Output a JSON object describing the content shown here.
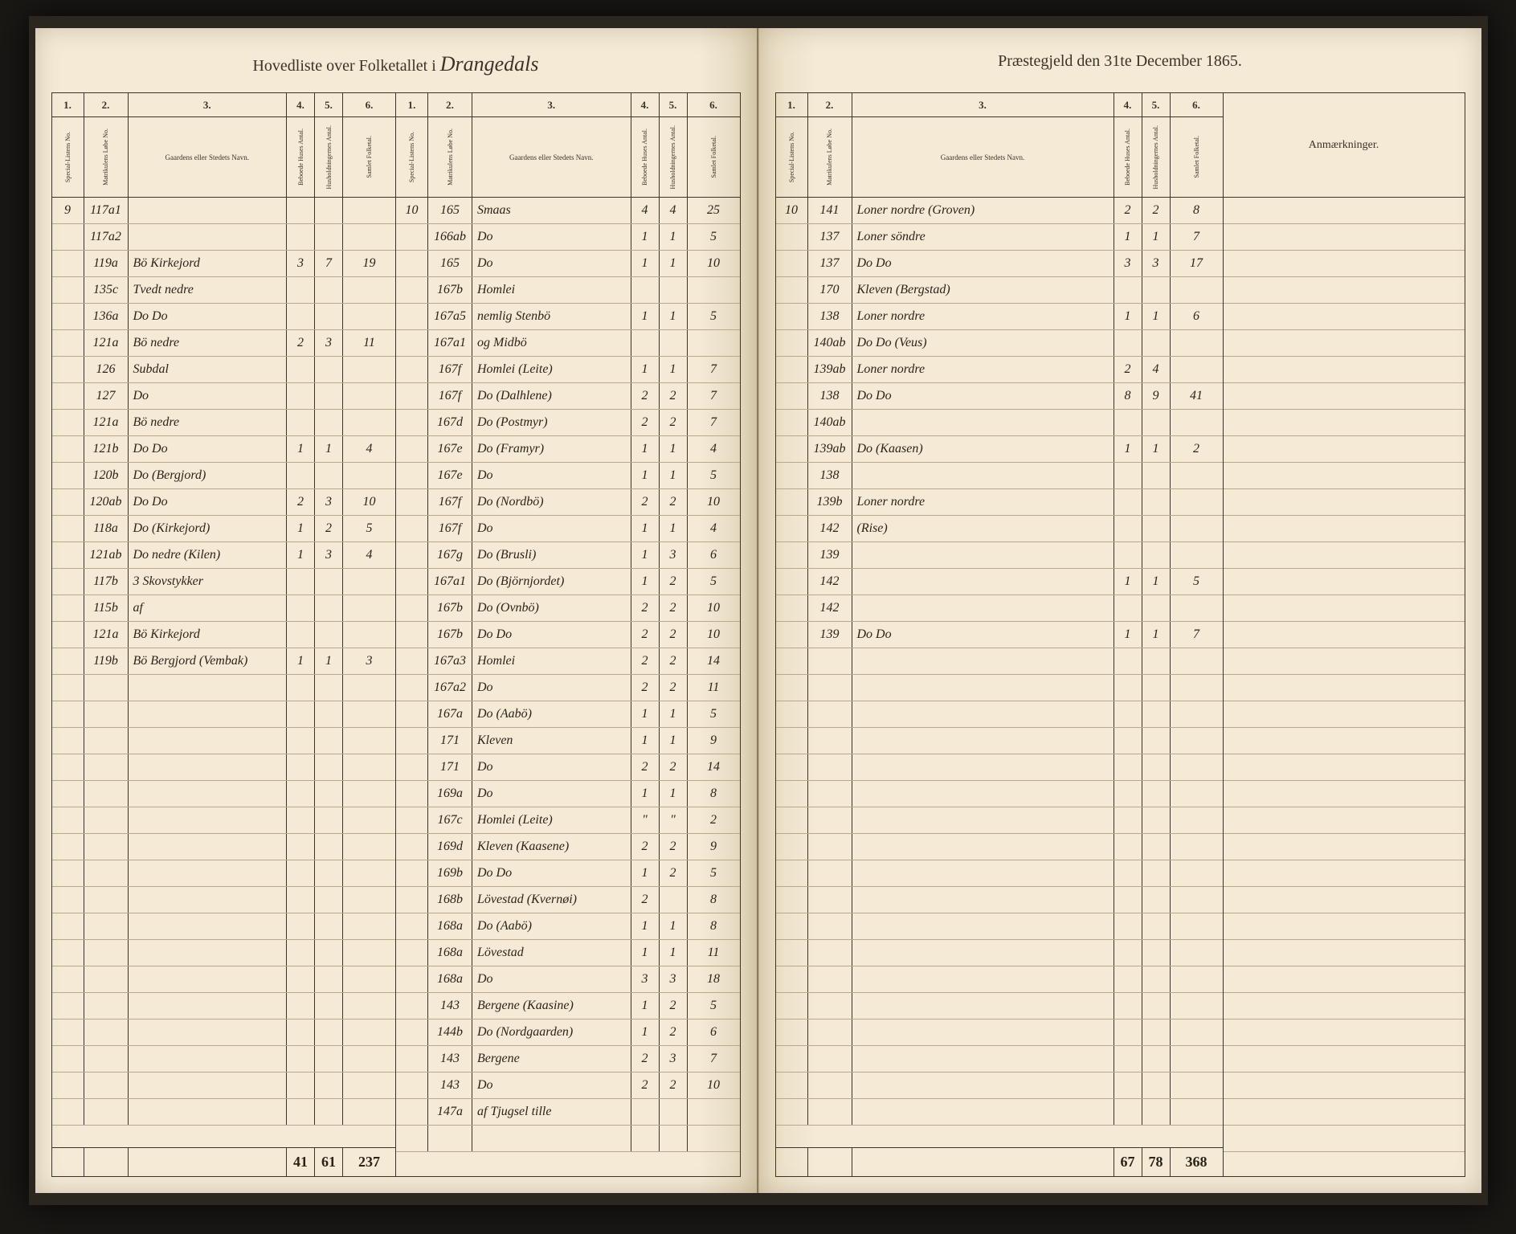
{
  "title_left_print": "Hovedliste over Folketallet i",
  "title_left_script": "Drangedals",
  "title_right": "Præstegjeld den 31te December 1865.",
  "col_nums": [
    "1.",
    "2.",
    "3.",
    "4.",
    "5.",
    "6."
  ],
  "headers": {
    "c1": "Special-Listens No.",
    "c2": "Matrikulens Løbe No.",
    "c3": "Gaardens eller Stedets Navn.",
    "c4": "Beboede Huses Antal.",
    "c5": "Husholdningernes Antal.",
    "c6": "Samlet Folketal."
  },
  "remarks_header": "Anmærkninger.",
  "left_section1": {
    "rows": [
      {
        "c1": "9",
        "c2": "117a1",
        "c3": "",
        "c4": "",
        "c5": "",
        "c6": ""
      },
      {
        "c1": "",
        "c2": "117a2",
        "c3": "",
        "c4": "",
        "c5": "",
        "c6": ""
      },
      {
        "c1": "",
        "c2": "119a",
        "c3": "Bö Kirkejord",
        "c4": "3",
        "c5": "7",
        "c6": "19"
      },
      {
        "c1": "",
        "c2": "135c",
        "c3": "Tvedt nedre",
        "c4": "",
        "c5": "",
        "c6": ""
      },
      {
        "c1": "",
        "c2": "136a",
        "c3": "Do   Do",
        "c4": "",
        "c5": "",
        "c6": ""
      },
      {
        "c1": "",
        "c2": "121a",
        "c3": "Bö nedre",
        "c4": "2",
        "c5": "3",
        "c6": "11"
      },
      {
        "c1": "",
        "c2": "126",
        "c3": "Subdal",
        "c4": "",
        "c5": "",
        "c6": ""
      },
      {
        "c1": "",
        "c2": "127",
        "c3": "Do",
        "c4": "",
        "c5": "",
        "c6": ""
      },
      {
        "c1": "",
        "c2": "121a",
        "c3": "Bö nedre",
        "c4": "",
        "c5": "",
        "c6": ""
      },
      {
        "c1": "",
        "c2": "121b",
        "c3": "Do   Do",
        "c4": "1",
        "c5": "1",
        "c6": "4"
      },
      {
        "c1": "",
        "c2": "120b",
        "c3": "Do (Bergjord)",
        "c4": "",
        "c5": "",
        "c6": ""
      },
      {
        "c1": "",
        "c2": "120ab",
        "c3": "Do   Do",
        "c4": "2",
        "c5": "3",
        "c6": "10"
      },
      {
        "c1": "",
        "c2": "118a",
        "c3": "Do (Kirkejord)",
        "c4": "1",
        "c5": "2",
        "c6": "5"
      },
      {
        "c1": "",
        "c2": "121ab",
        "c3": "Do nedre (Kilen)",
        "c4": "1",
        "c5": "3",
        "c6": "4"
      },
      {
        "c1": "",
        "c2": "117b",
        "c3": "3 Skovstykker",
        "c4": "",
        "c5": "",
        "c6": ""
      },
      {
        "c1": "",
        "c2": "115b",
        "c3": "af",
        "c4": "",
        "c5": "",
        "c6": ""
      },
      {
        "c1": "",
        "c2": "121a",
        "c3": "Bö Kirkejord",
        "c4": "",
        "c5": "",
        "c6": ""
      },
      {
        "c1": "",
        "c2": "119b",
        "c3": "Bö Bergjord (Vembak)",
        "c4": "1",
        "c5": "1",
        "c6": "3"
      }
    ],
    "totals": {
      "c4": "41",
      "c5": "61",
      "c6": "237"
    }
  },
  "left_section2": {
    "rows": [
      {
        "c1": "10",
        "c2": "165",
        "c3": "Smaas",
        "c4": "4",
        "c5": "4",
        "c6": "25"
      },
      {
        "c1": "",
        "c2": "166ab",
        "c3": "Do",
        "c4": "1",
        "c5": "1",
        "c6": "5"
      },
      {
        "c1": "",
        "c2": "165",
        "c3": "Do",
        "c4": "1",
        "c5": "1",
        "c6": "10"
      },
      {
        "c1": "",
        "c2": "167b",
        "c3": "Homlei",
        "c4": "",
        "c5": "",
        "c6": ""
      },
      {
        "c1": "",
        "c2": "167a5",
        "c3": "nemlig Stenbö",
        "c4": "1",
        "c5": "1",
        "c6": "5"
      },
      {
        "c1": "",
        "c2": "167a1",
        "c3": "og Midbö",
        "c4": "",
        "c5": "",
        "c6": ""
      },
      {
        "c1": "",
        "c2": "167f",
        "c3": "Homlei (Leite)",
        "c4": "1",
        "c5": "1",
        "c6": "7"
      },
      {
        "c1": "",
        "c2": "167f",
        "c3": "Do (Dalhlene)",
        "c4": "2",
        "c5": "2",
        "c6": "7"
      },
      {
        "c1": "",
        "c2": "167d",
        "c3": "Do (Postmyr)",
        "c4": "2",
        "c5": "2",
        "c6": "7"
      },
      {
        "c1": "",
        "c2": "167e",
        "c3": "Do (Framyr)",
        "c4": "1",
        "c5": "1",
        "c6": "4"
      },
      {
        "c1": "",
        "c2": "167e",
        "c3": "Do",
        "c4": "1",
        "c5": "1",
        "c6": "5"
      },
      {
        "c1": "",
        "c2": "167f",
        "c3": "Do (Nordbö)",
        "c4": "2",
        "c5": "2",
        "c6": "10"
      },
      {
        "c1": "",
        "c2": "167f",
        "c3": "Do",
        "c4": "1",
        "c5": "1",
        "c6": "4"
      },
      {
        "c1": "",
        "c2": "167g",
        "c3": "Do (Brusli)",
        "c4": "1",
        "c5": "3",
        "c6": "6"
      },
      {
        "c1": "",
        "c2": "167a1",
        "c3": "Do (Björnjordet)",
        "c4": "1",
        "c5": "2",
        "c6": "5"
      },
      {
        "c1": "",
        "c2": "167b",
        "c3": "Do (Ovnbö)",
        "c4": "2",
        "c5": "2",
        "c6": "10"
      },
      {
        "c1": "",
        "c2": "167b",
        "c3": "Do   Do",
        "c4": "2",
        "c5": "2",
        "c6": "10"
      },
      {
        "c1": "",
        "c2": "167a3",
        "c3": "Homlei",
        "c4": "2",
        "c5": "2",
        "c6": "14"
      },
      {
        "c1": "",
        "c2": "167a2",
        "c3": "Do",
        "c4": "2",
        "c5": "2",
        "c6": "11"
      },
      {
        "c1": "",
        "c2": "167a",
        "c3": "Do (Aabö)",
        "c4": "1",
        "c5": "1",
        "c6": "5"
      },
      {
        "c1": "",
        "c2": "171",
        "c3": "Kleven",
        "c4": "1",
        "c5": "1",
        "c6": "9"
      },
      {
        "c1": "",
        "c2": "171",
        "c3": "Do",
        "c4": "2",
        "c5": "2",
        "c6": "14"
      },
      {
        "c1": "",
        "c2": "169a",
        "c3": "Do",
        "c4": "1",
        "c5": "1",
        "c6": "8"
      },
      {
        "c1": "",
        "c2": "167c",
        "c3": "Homlei (Leite)",
        "c4": "\"",
        "c5": "\"",
        "c6": "2"
      },
      {
        "c1": "",
        "c2": "169d",
        "c3": "Kleven (Kaasene)",
        "c4": "2",
        "c5": "2",
        "c6": "9"
      },
      {
        "c1": "",
        "c2": "169b",
        "c3": "Do   Do",
        "c4": "1",
        "c5": "2",
        "c6": "5"
      },
      {
        "c1": "",
        "c2": "168b",
        "c3": "Lövestad (Kvernøi)",
        "c4": "2",
        "c5": "",
        "c6": "8"
      },
      {
        "c1": "",
        "c2": "168a",
        "c3": "Do (Aabö)",
        "c4": "1",
        "c5": "1",
        "c6": "8"
      },
      {
        "c1": "",
        "c2": "168a",
        "c3": "Lövestad",
        "c4": "1",
        "c5": "1",
        "c6": "11"
      },
      {
        "c1": "",
        "c2": "168a",
        "c3": "Do",
        "c4": "3",
        "c5": "3",
        "c6": "18"
      },
      {
        "c1": "",
        "c2": "143",
        "c3": "Bergene (Kaasine)",
        "c4": "1",
        "c5": "2",
        "c6": "5"
      },
      {
        "c1": "",
        "c2": "144b",
        "c3": "Do (Nordgaarden)",
        "c4": "1",
        "c5": "2",
        "c6": "6"
      },
      {
        "c1": "",
        "c2": "143",
        "c3": "Bergene",
        "c4": "2",
        "c5": "3",
        "c6": "7"
      },
      {
        "c1": "",
        "c2": "143",
        "c3": "Do",
        "c4": "2",
        "c5": "2",
        "c6": "10"
      },
      {
        "c1": "",
        "c2": "147a",
        "c3": "af Tjugsel tille",
        "c4": "",
        "c5": "",
        "c6": ""
      }
    ]
  },
  "right_section1": {
    "rows": [
      {
        "c1": "10",
        "c2": "141",
        "c3": "Loner nordre (Groven)",
        "c4": "2",
        "c5": "2",
        "c6": "8"
      },
      {
        "c1": "",
        "c2": "137",
        "c3": "Loner söndre",
        "c4": "1",
        "c5": "1",
        "c6": "7"
      },
      {
        "c1": "",
        "c2": "137",
        "c3": "Do   Do",
        "c4": "3",
        "c5": "3",
        "c6": "17"
      },
      {
        "c1": "",
        "c2": "170",
        "c3": "Kleven (Bergstad)",
        "c4": "",
        "c5": "",
        "c6": ""
      },
      {
        "c1": "",
        "c2": "138",
        "c3": "Loner nordre",
        "c4": "1",
        "c5": "1",
        "c6": "6"
      },
      {
        "c1": "",
        "c2": "140ab",
        "c3": "Do  Do (Veus)",
        "c4": "",
        "c5": "",
        "c6": ""
      },
      {
        "c1": "",
        "c2": "139ab",
        "c3": "Loner nordre",
        "c4": "2",
        "c5": "4",
        "c6": ""
      },
      {
        "c1": "",
        "c2": "138",
        "c3": "Do   Do",
        "c4": "8",
        "c5": "9",
        "c6": "41"
      },
      {
        "c1": "",
        "c2": "140ab",
        "c3": "",
        "c4": "",
        "c5": "",
        "c6": ""
      },
      {
        "c1": "",
        "c2": "139ab",
        "c3": "Do (Kaasen)",
        "c4": "1",
        "c5": "1",
        "c6": "2"
      },
      {
        "c1": "",
        "c2": "138",
        "c3": "",
        "c4": "",
        "c5": "",
        "c6": ""
      },
      {
        "c1": "",
        "c2": "139b",
        "c3": "Loner nordre",
        "c4": "",
        "c5": "",
        "c6": ""
      },
      {
        "c1": "",
        "c2": "142",
        "c3": "(Rise)",
        "c4": "",
        "c5": "",
        "c6": ""
      },
      {
        "c1": "",
        "c2": "139",
        "c3": "",
        "c4": "",
        "c5": "",
        "c6": ""
      },
      {
        "c1": "",
        "c2": "142",
        "c3": "",
        "c4": "1",
        "c5": "1",
        "c6": "5"
      },
      {
        "c1": "",
        "c2": "142",
        "c3": "",
        "c4": "",
        "c5": "",
        "c6": ""
      },
      {
        "c1": "",
        "c2": "139",
        "c3": "Do   Do",
        "c4": "1",
        "c5": "1",
        "c6": "7"
      }
    ],
    "totals": {
      "c4": "67",
      "c5": "78",
      "c6": "368"
    }
  }
}
